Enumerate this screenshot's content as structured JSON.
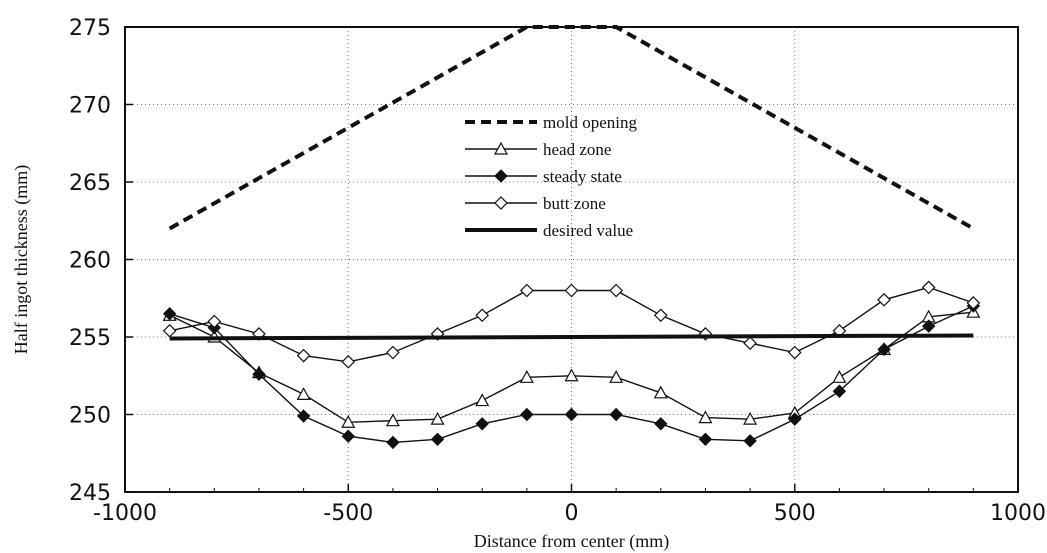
{
  "chart_data": {
    "type": "line",
    "title": "",
    "xlabel": "Distance from center (mm)",
    "ylabel": "Half ingot thickness (mm)",
    "xlim": [
      -1000,
      1000
    ],
    "ylim": [
      245,
      275
    ],
    "xticks": [
      -1000,
      -500,
      0,
      500,
      1000
    ],
    "yticks": [
      245,
      250,
      255,
      260,
      265,
      270,
      275
    ],
    "grid": "dotted",
    "legend_position": "top-center",
    "series": [
      {
        "name": "mold opening",
        "style": "dashed",
        "color": "#111111",
        "x": [
          -900,
          -100,
          100,
          900
        ],
        "y": [
          262,
          275,
          275,
          262
        ]
      },
      {
        "name": "head zone",
        "style": "line-open-triangle",
        "color": "#111111",
        "x": [
          -900,
          -800,
          -700,
          -600,
          -500,
          -400,
          -300,
          -200,
          -100,
          0,
          100,
          200,
          300,
          400,
          500,
          600,
          700,
          800,
          900
        ],
        "y": [
          256.4,
          255.0,
          252.7,
          251.3,
          249.5,
          249.6,
          249.7,
          250.9,
          252.4,
          252.5,
          252.4,
          251.4,
          249.8,
          249.7,
          250.1,
          252.4,
          254.2,
          256.3,
          256.6
        ]
      },
      {
        "name": "steady state",
        "style": "line-filled-diamond",
        "color": "#111111",
        "x": [
          -900,
          -800,
          -700,
          -600,
          -500,
          -400,
          -300,
          -200,
          -100,
          0,
          100,
          200,
          300,
          400,
          500,
          600,
          700,
          800,
          900
        ],
        "y": [
          256.5,
          255.6,
          252.6,
          249.9,
          248.6,
          248.2,
          248.4,
          249.4,
          250.0,
          250.0,
          250.0,
          249.4,
          248.4,
          248.3,
          249.7,
          251.5,
          254.2,
          255.7,
          257.0
        ]
      },
      {
        "name": "butt zone",
        "style": "line-open-diamond",
        "color": "#111111",
        "x": [
          -900,
          -800,
          -700,
          -600,
          -500,
          -400,
          -300,
          -200,
          -100,
          0,
          100,
          200,
          300,
          400,
          500,
          600,
          700,
          800,
          900
        ],
        "y": [
          255.4,
          256.0,
          255.2,
          253.8,
          253.4,
          254.0,
          255.2,
          256.4,
          258.0,
          258.0,
          258.0,
          256.4,
          255.2,
          254.6,
          254.0,
          255.4,
          257.4,
          258.2,
          257.2
        ]
      },
      {
        "name": "desired value",
        "style": "thick-solid",
        "color": "#111111",
        "x": [
          -900,
          900
        ],
        "y": [
          254.9,
          255.1
        ]
      }
    ]
  }
}
